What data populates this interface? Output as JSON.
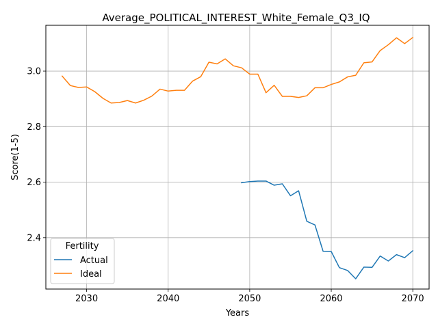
{
  "chart_data": {
    "type": "line",
    "title": "Average_POLITICAL_INTEREST_White_Female_Q3_IQ",
    "xlabel": "Years",
    "ylabel": "Score(1-5)",
    "xlim": [
      2025,
      2072
    ],
    "ylim": [
      2.215,
      3.165
    ],
    "xticks": [
      2030,
      2040,
      2050,
      2060,
      2070
    ],
    "yticks": [
      2.4,
      2.6,
      2.8,
      3.0
    ],
    "xtick_labels": [
      "2030",
      "2040",
      "2050",
      "2060",
      "2070"
    ],
    "ytick_labels": [
      "2.4",
      "2.6",
      "2.8",
      "3.0"
    ],
    "grid": true,
    "legend": {
      "title": "Fertility",
      "position": "lower-left"
    },
    "series": [
      {
        "name": "Actual",
        "color": "#1f77b4",
        "x": [
          2049,
          2050,
          2051,
          2052,
          2053,
          2054,
          2055,
          2056,
          2057,
          2058,
          2059,
          2060,
          2061,
          2062,
          2063,
          2064,
          2065,
          2066,
          2067,
          2068,
          2069,
          2070
        ],
        "y": [
          2.598,
          2.602,
          2.604,
          2.604,
          2.589,
          2.594,
          2.551,
          2.569,
          2.459,
          2.446,
          2.351,
          2.35,
          2.292,
          2.282,
          2.252,
          2.294,
          2.293,
          2.334,
          2.316,
          2.339,
          2.328,
          2.353
        ]
      },
      {
        "name": "Ideal",
        "color": "#ff7f0e",
        "x": [
          2027,
          2028,
          2029,
          2030,
          2031,
          2032,
          2033,
          2034,
          2035,
          2036,
          2037,
          2038,
          2039,
          2040,
          2041,
          2042,
          2043,
          2044,
          2045,
          2046,
          2047,
          2048,
          2049,
          2050,
          2051,
          2052,
          2053,
          2054,
          2055,
          2056,
          2057,
          2058,
          2059,
          2060,
          2061,
          2062,
          2063,
          2064,
          2065,
          2066,
          2067,
          2068,
          2069,
          2070
        ],
        "y": [
          2.982,
          2.948,
          2.941,
          2.943,
          2.926,
          2.902,
          2.885,
          2.887,
          2.894,
          2.885,
          2.895,
          2.91,
          2.935,
          2.928,
          2.931,
          2.931,
          2.964,
          2.98,
          3.032,
          3.026,
          3.044,
          3.019,
          3.012,
          2.989,
          2.989,
          2.922,
          2.949,
          2.909,
          2.909,
          2.905,
          2.911,
          2.94,
          2.94,
          2.952,
          2.961,
          2.979,
          2.985,
          3.03,
          3.033,
          3.074,
          3.095,
          3.12,
          3.099,
          3.121
        ]
      }
    ]
  }
}
